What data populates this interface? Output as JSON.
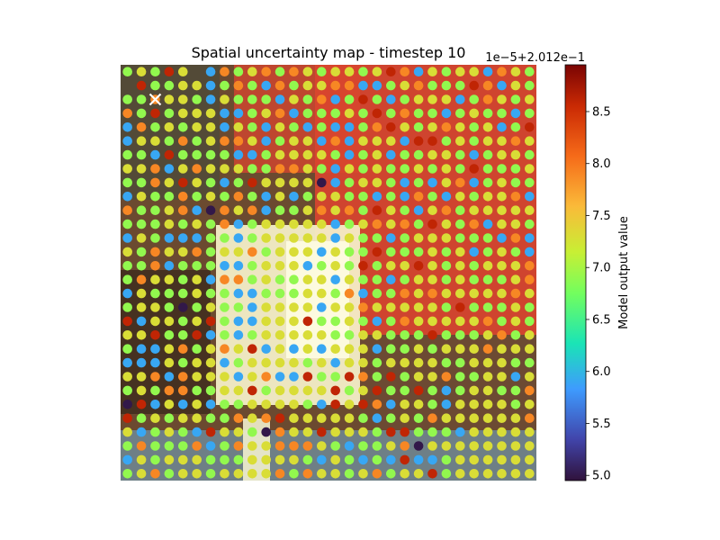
{
  "chart_data": {
    "type": "scatter",
    "title": "Spatial uncertainty map - timestep 10",
    "colorbar": {
      "label": "Model output value",
      "offset_text": "1e−5+2.012e−1",
      "range": [
        4.95,
        8.95
      ],
      "ticks": [
        5.0,
        5.5,
        6.0,
        6.5,
        7.0,
        7.5,
        8.0,
        8.5
      ],
      "tick_labels": [
        "5.0",
        "5.5",
        "6.0",
        "6.5",
        "7.0",
        "7.5",
        "8.0",
        "8.5"
      ],
      "colormap": "turbo"
    },
    "grid": {
      "columns": 30,
      "rows": 30
    },
    "marker": {
      "symbol": "x",
      "color": "#ffffff",
      "column": 2,
      "row": 2
    },
    "series": [
      {
        "values": [
          "gygrysbogyogoygyygyrobygyyboyg",
          "xrggyybgogbogyyoobbgyogggrobyg",
          "ggoyygbygggbygobgrgbgyyybgoygy",
          "ogrgyyybbgyobgggygrgoggbgyggbg",
          "bogygyybygbygbgbbgorygyoygybgr",
          "byygogyooybgyybobyyybrrgygyyoy",
          "ggbrggggbbgyyyygbgybggyygbgyyg",
          "yyobyoyyyggooygbygyggygygrgggy",
          "ggoyrygbgryyyynbgyygbgbyobgygg",
          "byggogygogbybgyyggbgbogbygyyob",
          "oggyobnoyobggyoyogrygbyogyyyyy",
          "gggygygobgyyyyybgyoyogrygobyyg",
          "bygbbbggbgyyyyybyggbgyyygggbob",
          "ygoyyogyyogyyybyggrgggygybgygb",
          "ggobgggbbgyyybgygrgyyrygygyyyo",
          "goyygyboogyggyybyggbgyygygggyo",
          "bygggyggbbgggyygobggoyoyyyyyoy",
          "gyygngyggbyyyybyyoyyyyygrgggyg",
          "rbyygyrgbbyyyrggygbgoyyyyyogyg",
          "yyrggrbgbgyyyyyggyygggrgggyogy",
          "gbbyogyoyrbybybyyybggygyyyoyyy",
          "bbbygyybgyyyygybyygyyyyggyyygg",
          "yyoboyyybyobbrggrogrgyyoggyyby",
          "gygooggyyrgyyyyrgyrggrgbgyyggo",
          "nrbybybggyyyygbryrobyygbyyyygy",
          "rgygyyggoyoryyyyygbgygoyyyyyyo",
          "ybgygbryygnoyyryyygrrgggbyyyyy",
          "gogggobgoyyoooygbggyonyyyyyyyy",
          "bygyyygggyyyygbygbgbrbbgyyyyyy",
          "gyogyygyyyyogoyygyogyyrgyyyyyy"
        ],
        "scale": {
          "n": 5.0,
          "b": 5.9,
          "g": 6.9,
          "y": 7.3,
          "o": 7.9,
          "r": 8.6
        }
      }
    ]
  }
}
